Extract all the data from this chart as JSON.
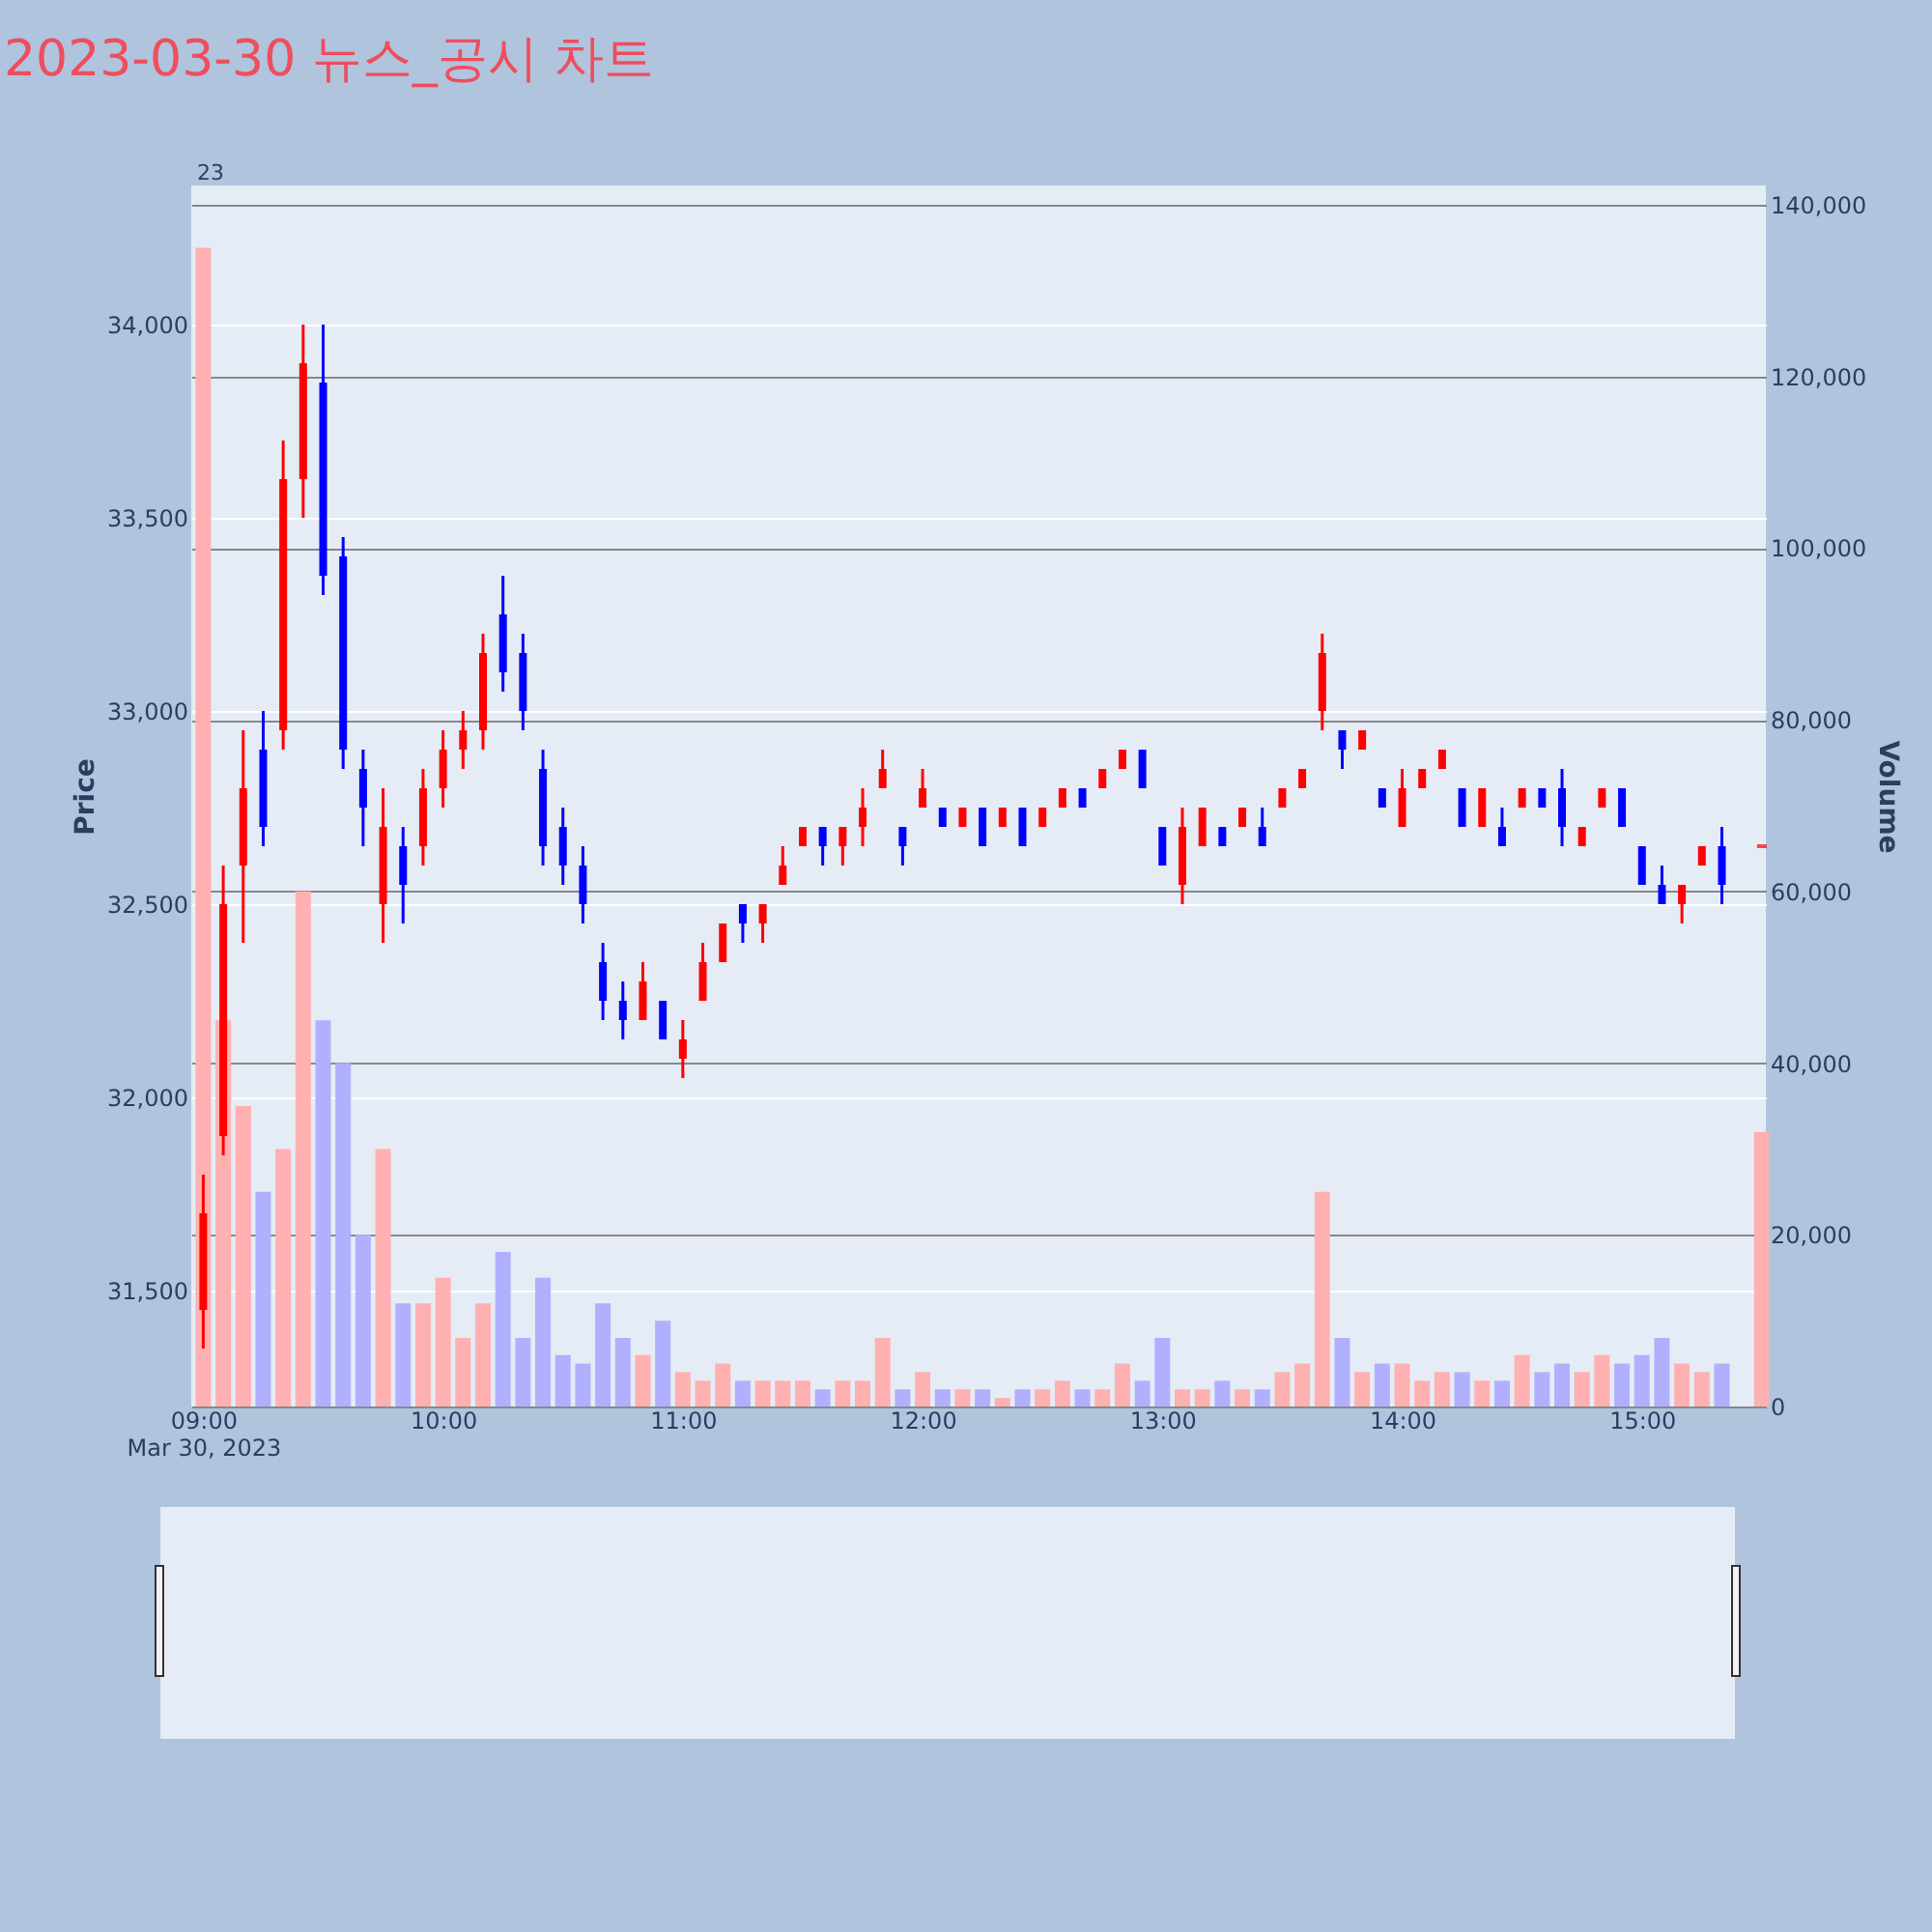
{
  "chart_data": {
    "type": "candlestick",
    "title": "2023-03-30 뉴스_공시 차트",
    "ylabel": "Price",
    "y2label": "Volume",
    "annotations": [
      "23"
    ],
    "x": [
      "2023-03-30T09:00",
      "2023-03-30T09:05",
      "2023-03-30T09:10",
      "2023-03-30T09:15",
      "2023-03-30T09:20",
      "2023-03-30T09:25",
      "2023-03-30T09:30",
      "2023-03-30T09:35",
      "2023-03-30T09:40",
      "2023-03-30T09:45",
      "2023-03-30T09:50",
      "2023-03-30T09:55",
      "2023-03-30T10:00",
      "2023-03-30T10:05",
      "2023-03-30T10:10",
      "2023-03-30T10:15",
      "2023-03-30T10:20",
      "2023-03-30T10:25",
      "2023-03-30T10:30",
      "2023-03-30T10:35",
      "2023-03-30T10:40",
      "2023-03-30T10:45",
      "2023-03-30T10:50",
      "2023-03-30T10:55",
      "2023-03-30T11:00",
      "2023-03-30T11:05",
      "2023-03-30T11:10",
      "2023-03-30T11:15",
      "2023-03-30T11:20",
      "2023-03-30T11:25",
      "2023-03-30T11:30",
      "2023-03-30T11:35",
      "2023-03-30T11:40",
      "2023-03-30T11:45",
      "2023-03-30T11:50",
      "2023-03-30T11:55",
      "2023-03-30T12:00",
      "2023-03-30T12:05",
      "2023-03-30T12:10",
      "2023-03-30T12:15",
      "2023-03-30T12:20",
      "2023-03-30T12:25",
      "2023-03-30T12:30",
      "2023-03-30T12:35",
      "2023-03-30T12:40",
      "2023-03-30T12:45",
      "2023-03-30T12:50",
      "2023-03-30T12:55",
      "2023-03-30T13:00",
      "2023-03-30T13:05",
      "2023-03-30T13:10",
      "2023-03-30T13:15",
      "2023-03-30T13:20",
      "2023-03-30T13:25",
      "2023-03-30T13:30",
      "2023-03-30T13:35",
      "2023-03-30T13:40",
      "2023-03-30T13:45",
      "2023-03-30T13:50",
      "2023-03-30T13:55",
      "2023-03-30T14:00",
      "2023-03-30T14:05",
      "2023-03-30T14:10",
      "2023-03-30T14:15",
      "2023-03-30T14:20",
      "2023-03-30T14:25",
      "2023-03-30T14:30",
      "2023-03-30T14:35",
      "2023-03-30T14:40",
      "2023-03-30T14:45",
      "2023-03-30T14:50",
      "2023-03-30T14:55",
      "2023-03-30T15:00",
      "2023-03-30T15:05",
      "2023-03-30T15:10",
      "2023-03-30T15:15",
      "2023-03-30T15:20",
      "2023-03-30T15:30"
    ],
    "xlim": [
      "2023-03-30T08:57",
      "2023-03-30T15:31"
    ],
    "xticks": [
      {
        "value": "2023-03-30T09:00",
        "label": "09:00\nMar 30, 2023"
      },
      {
        "value": "2023-03-30T10:00",
        "label": "10:00"
      },
      {
        "value": "2023-03-30T11:00",
        "label": "11:00"
      },
      {
        "value": "2023-03-30T12:00",
        "label": "12:00"
      },
      {
        "value": "2023-03-30T13:00",
        "label": "13:00"
      },
      {
        "value": "2023-03-30T14:00",
        "label": "14:00"
      },
      {
        "value": "2023-03-30T15:00",
        "label": "15:00"
      }
    ],
    "ylim": [
      31200,
      34360
    ],
    "yticks": [
      {
        "value": 31500,
        "label": "31,500"
      },
      {
        "value": 32000,
        "label": "32,000"
      },
      {
        "value": 32500,
        "label": "32,500"
      },
      {
        "value": 33000,
        "label": "33,000"
      },
      {
        "value": 33500,
        "label": "33,500"
      },
      {
        "value": 34000,
        "label": "34,000"
      }
    ],
    "y2lim": [
      0,
      142250
    ],
    "y2ticks": [
      0,
      {
        "value": 20000,
        "label": "20,000"
      },
      {
        "value": 40000,
        "label": "40,000"
      },
      {
        "value": 60000,
        "label": "60,000"
      },
      {
        "value": 80000,
        "label": "80,000"
      },
      {
        "value": 100000,
        "label": "100,000"
      },
      {
        "value": 120000,
        "label": "120,000"
      },
      {
        "value": 140000,
        "label": "140,000"
      }
    ],
    "grid": "y",
    "series": [
      {
        "type": "candlestick",
        "ohlc": [
          [
            31450,
            31800,
            31350,
            31700
          ],
          [
            31900,
            32600,
            31850,
            32500
          ],
          [
            32600,
            32950,
            32400,
            32800
          ],
          [
            32900,
            33000,
            32650,
            32700
          ],
          [
            32950,
            33700,
            32900,
            33600
          ],
          [
            33600,
            34000,
            33500,
            33900
          ],
          [
            33850,
            34000,
            33300,
            33350
          ],
          [
            33400,
            33450,
            32850,
            32900
          ],
          [
            32850,
            32900,
            32650,
            32750
          ],
          [
            32500,
            32800,
            32400,
            32700
          ],
          [
            32650,
            32700,
            32450,
            32550
          ],
          [
            32650,
            32850,
            32600,
            32800
          ],
          [
            32800,
            32950,
            32750,
            32900
          ],
          [
            32900,
            33000,
            32850,
            32950
          ],
          [
            32950,
            33200,
            32900,
            33150
          ],
          [
            33250,
            33350,
            33050,
            33100
          ],
          [
            33150,
            33200,
            32950,
            33000
          ],
          [
            32850,
            32900,
            32600,
            32650
          ],
          [
            32700,
            32750,
            32550,
            32600
          ],
          [
            32600,
            32650,
            32450,
            32500
          ],
          [
            32350,
            32400,
            32200,
            32250
          ],
          [
            32250,
            32300,
            32150,
            32200
          ],
          [
            32200,
            32350,
            32200,
            32300
          ],
          [
            32250,
            32250,
            32150,
            32150
          ],
          [
            32100,
            32200,
            32050,
            32150
          ],
          [
            32250,
            32400,
            32250,
            32350
          ],
          [
            32350,
            32450,
            32350,
            32450
          ],
          [
            32500,
            32500,
            32400,
            32450
          ],
          [
            32450,
            32500,
            32400,
            32500
          ],
          [
            32550,
            32650,
            32550,
            32600
          ],
          [
            32650,
            32700,
            32650,
            32700
          ],
          [
            32700,
            32700,
            32600,
            32650
          ],
          [
            32650,
            32700,
            32600,
            32700
          ],
          [
            32700,
            32800,
            32650,
            32750
          ],
          [
            32800,
            32900,
            32800,
            32850
          ],
          [
            32700,
            32700,
            32600,
            32650
          ],
          [
            32750,
            32850,
            32750,
            32800
          ],
          [
            32750,
            32750,
            32700,
            32700
          ],
          [
            32700,
            32750,
            32700,
            32750
          ],
          [
            32750,
            32750,
            32650,
            32650
          ],
          [
            32700,
            32750,
            32700,
            32750
          ],
          [
            32750,
            32750,
            32650,
            32650
          ],
          [
            32700,
            32750,
            32700,
            32750
          ],
          [
            32750,
            32800,
            32750,
            32800
          ],
          [
            32800,
            32800,
            32750,
            32750
          ],
          [
            32800,
            32850,
            32800,
            32850
          ],
          [
            32850,
            32900,
            32850,
            32900
          ],
          [
            32900,
            32900,
            32800,
            32800
          ],
          [
            32700,
            32700,
            32600,
            32600
          ],
          [
            32550,
            32750,
            32500,
            32700
          ],
          [
            32650,
            32750,
            32650,
            32750
          ],
          [
            32700,
            32700,
            32650,
            32650
          ],
          [
            32700,
            32750,
            32700,
            32750
          ],
          [
            32700,
            32750,
            32650,
            32650
          ],
          [
            32750,
            32800,
            32750,
            32800
          ],
          [
            32800,
            32850,
            32800,
            32850
          ],
          [
            33000,
            33200,
            32950,
            33150
          ],
          [
            32950,
            32950,
            32850,
            32900
          ],
          [
            32900,
            32950,
            32900,
            32950
          ],
          [
            32800,
            32800,
            32750,
            32750
          ],
          [
            32700,
            32850,
            32700,
            32800
          ],
          [
            32800,
            32850,
            32800,
            32850
          ],
          [
            32850,
            32900,
            32850,
            32900
          ],
          [
            32800,
            32800,
            32700,
            32700
          ],
          [
            32700,
            32800,
            32700,
            32800
          ],
          [
            32700,
            32750,
            32650,
            32650
          ],
          [
            32750,
            32800,
            32750,
            32800
          ],
          [
            32800,
            32800,
            32750,
            32750
          ],
          [
            32800,
            32850,
            32650,
            32700
          ],
          [
            32650,
            32700,
            32650,
            32700
          ],
          [
            32750,
            32800,
            32750,
            32800
          ],
          [
            32800,
            32800,
            32700,
            32700
          ],
          [
            32650,
            32650,
            32550,
            32550
          ],
          [
            32550,
            32600,
            32500,
            32500
          ],
          [
            32500,
            32550,
            32450,
            32550
          ],
          [
            32600,
            32650,
            32600,
            32650
          ],
          [
            32650,
            32700,
            32500,
            32550
          ],
          [
            32650,
            32650,
            32650,
            32650
          ]
        ],
        "colors": [
          "#ff0000",
          "#ff0000",
          "#ff0000",
          "#0000ff",
          "#ff0000",
          "#ff0000",
          "#0000ff",
          "#0000ff",
          "#0000ff",
          "#ff0000",
          "#0000ff",
          "#ff0000",
          "#ff0000",
          "#ff0000",
          "#ff0000",
          "#0000ff",
          "#0000ff",
          "#0000ff",
          "#0000ff",
          "#0000ff",
          "#0000ff",
          "#0000ff",
          "#ff0000",
          "#0000ff",
          "#ff0000",
          "#ff0000",
          "#ff0000",
          "#0000ff",
          "#ff0000",
          "#ff0000",
          "#ff0000",
          "#0000ff",
          "#ff0000",
          "#ff0000",
          "#ff0000",
          "#0000ff",
          "#ff0000",
          "#0000ff",
          "#ff0000",
          "#0000ff",
          "#ff0000",
          "#0000ff",
          "#ff0000",
          "#ff0000",
          "#0000ff",
          "#ff0000",
          "#ff0000",
          "#0000ff",
          "#0000ff",
          "#ff0000",
          "#ff0000",
          "#0000ff",
          "#ff0000",
          "#0000ff",
          "#ff0000",
          "#ff0000",
          "#ff0000",
          "#0000ff",
          "#ff0000",
          "#0000ff",
          "#ff0000",
          "#ff0000",
          "#ff0000",
          "#0000ff",
          "#ff0000",
          "#0000ff",
          "#ff0000",
          "#0000ff",
          "#0000ff",
          "#ff0000",
          "#ff0000",
          "#0000ff",
          "#0000ff",
          "#0000ff",
          "#ff0000",
          "#ff0000",
          "#0000ff",
          "#ff0000"
        ]
      },
      {
        "type": "bar",
        "axis": "y2",
        "values": [
          135000,
          45000,
          35000,
          25000,
          30000,
          60000,
          45000,
          40000,
          20000,
          30000,
          12000,
          12000,
          15000,
          8000,
          12000,
          18000,
          8000,
          15000,
          6000,
          5000,
          12000,
          8000,
          6000,
          10000,
          4000,
          3000,
          5000,
          3000,
          3000,
          3000,
          3000,
          2000,
          3000,
          3000,
          8000,
          2000,
          4000,
          2000,
          2000,
          2000,
          1000,
          2000,
          2000,
          3000,
          2000,
          2000,
          5000,
          3000,
          8000,
          2000,
          2000,
          3000,
          2000,
          2000,
          4000,
          5000,
          25000,
          8000,
          4000,
          5000,
          5000,
          3000,
          4000,
          4000,
          3000,
          3000,
          6000,
          4000,
          5000,
          4000,
          6000,
          5000,
          6000,
          8000,
          5000,
          4000,
          5000,
          32000
        ],
        "colors": [
          "#ffb0b0",
          "#ffb0b0",
          "#ffb0b0",
          "#b0b0ff",
          "#ffb0b0",
          "#ffb0b0",
          "#b0b0ff",
          "#b0b0ff",
          "#b0b0ff",
          "#ffb0b0",
          "#b0b0ff",
          "#ffb0b0",
          "#ffb0b0",
          "#ffb0b0",
          "#ffb0b0",
          "#b0b0ff",
          "#b0b0ff",
          "#b0b0ff",
          "#b0b0ff",
          "#b0b0ff",
          "#b0b0ff",
          "#b0b0ff",
          "#ffb0b0",
          "#b0b0ff",
          "#ffb0b0",
          "#ffb0b0",
          "#ffb0b0",
          "#b0b0ff",
          "#ffb0b0",
          "#ffb0b0",
          "#ffb0b0",
          "#b0b0ff",
          "#ffb0b0",
          "#ffb0b0",
          "#ffb0b0",
          "#b0b0ff",
          "#ffb0b0",
          "#b0b0ff",
          "#ffb0b0",
          "#b0b0ff",
          "#ffb0b0",
          "#b0b0ff",
          "#ffb0b0",
          "#ffb0b0",
          "#b0b0ff",
          "#ffb0b0",
          "#ffb0b0",
          "#b0b0ff",
          "#b0b0ff",
          "#ffb0b0",
          "#ffb0b0",
          "#b0b0ff",
          "#ffb0b0",
          "#b0b0ff",
          "#ffb0b0",
          "#ffb0b0",
          "#ffb0b0",
          "#b0b0ff",
          "#ffb0b0",
          "#b0b0ff",
          "#ffb0b0",
          "#ffb0b0",
          "#ffb0b0",
          "#b0b0ff",
          "#ffb0b0",
          "#b0b0ff",
          "#ffb0b0",
          "#b0b0ff",
          "#b0b0ff",
          "#ffb0b0",
          "#ffb0b0",
          "#b0b0ff",
          "#b0b0ff",
          "#b0b0ff",
          "#ffb0b0",
          "#ffb0b0",
          "#b0b0ff",
          "#ffb0b0"
        ]
      }
    ]
  }
}
